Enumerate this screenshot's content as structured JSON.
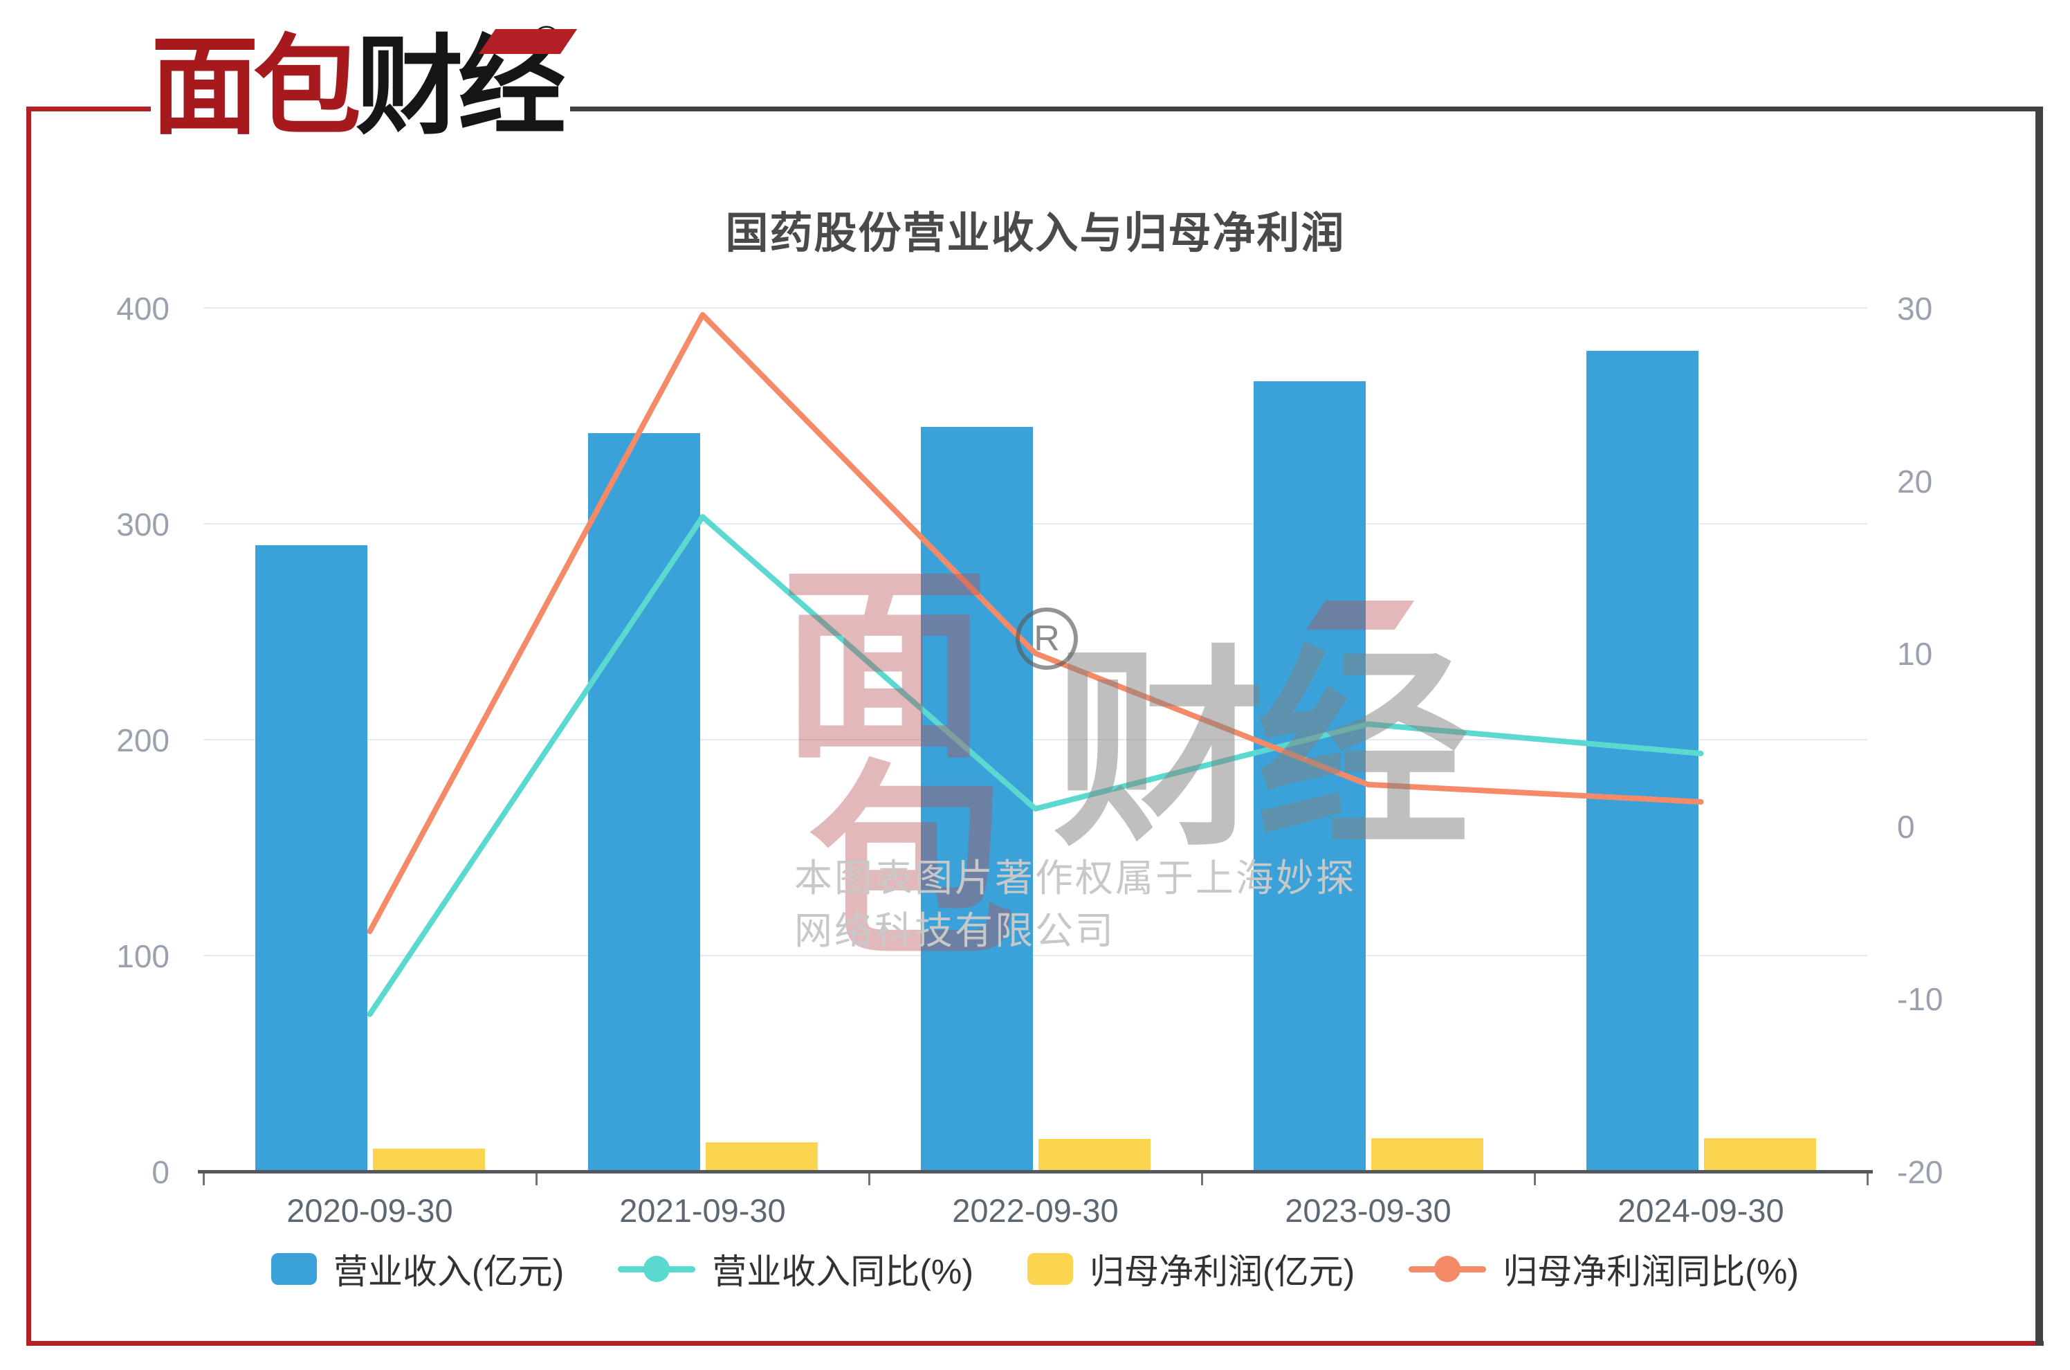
{
  "brand": {
    "logo_red": "面包",
    "logo_black": "财经",
    "reg": "®"
  },
  "watermark": {
    "big_top_left": "面",
    "big_bottom_left": "包",
    "big_right": "财经",
    "reg": "R",
    "line1": "本图表图片著作权属于上海妙探",
    "line2": "网络科技有限公司"
  },
  "chart_data": {
    "type": "bar+line combo",
    "title": "国药股份营业收入与归母净利润",
    "categories": [
      "2020-09-30",
      "2021-09-30",
      "2022-09-30",
      "2023-09-30",
      "2024-09-30"
    ],
    "series": [
      {
        "name": "营业收入(亿元)",
        "type": "bar",
        "axis": "left",
        "color": "#3aa2d9",
        "values": [
          290,
          342,
          345,
          366,
          380
        ]
      },
      {
        "name": "营业收入同比(%)",
        "type": "line",
        "axis": "right",
        "color": "#5bd8cf",
        "values": [
          -10.9,
          17.9,
          1.0,
          5.9,
          4.2
        ]
      },
      {
        "name": "归母净利润(亿元)",
        "type": "bar",
        "axis": "left",
        "color": "#fbd550",
        "values": [
          10.5,
          13.6,
          15.0,
          15.3,
          15.5
        ]
      },
      {
        "name": "归母净利润同比(%)",
        "type": "line",
        "axis": "right",
        "color": "#f58a68",
        "values": [
          -6.1,
          29.6,
          10.0,
          2.4,
          1.4
        ]
      }
    ],
    "y_axis_left": {
      "min": 0,
      "max": 400,
      "ticks": [
        0,
        100,
        200,
        300,
        400
      ]
    },
    "y_axis_right": {
      "min": -20,
      "max": 30,
      "ticks": [
        -20,
        -10,
        0,
        10,
        20,
        30
      ]
    },
    "grid": "horizontal light-blue lines at left-axis ticks",
    "legend_position": "bottom"
  },
  "colors": {
    "bar_blue": "#3aa2d9",
    "bar_yellow": "#fbd550",
    "line_teal": "#5bd8cf",
    "line_orange": "#f58a68",
    "frame_red": "#b22024",
    "frame_dark": "#3f4145",
    "title_text": "#4a4a4a",
    "axis_tick_text": "#98a1ad",
    "x_label_text": "#5d6772",
    "legend_text": "#323232",
    "gridline": "#e4eaf3",
    "axis_line": "#54575b",
    "watermark_text": "#c8c8c8"
  }
}
